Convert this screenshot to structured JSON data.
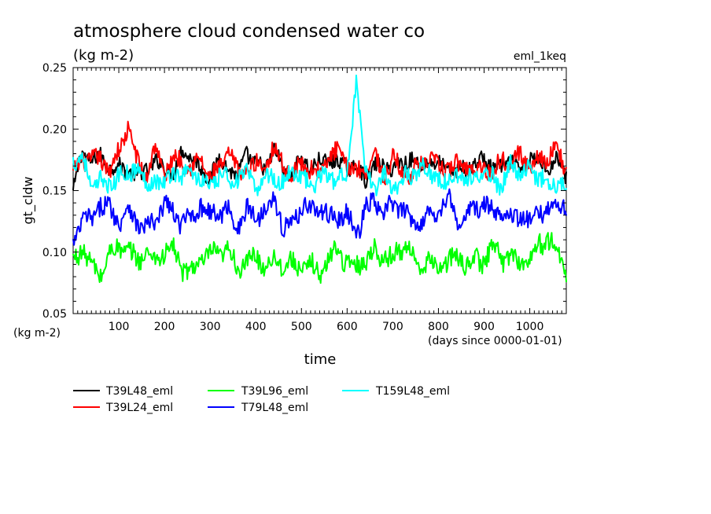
{
  "header": {
    "title": "atmosphere cloud condensed water co",
    "units": "(kg m-2)",
    "run_label": "eml_1keq"
  },
  "chart_data": {
    "type": "line",
    "title": "atmosphere cloud condensed water co",
    "subtitle": "(kg m-2)",
    "xlabel": "time",
    "xunits": "(days since 0000-01-01)",
    "ylabel": "gt_cldw",
    "yunits": "(kg m-2)",
    "xlim": [
      0,
      1080
    ],
    "ylim": [
      0.05,
      0.25
    ],
    "x_ticks": [
      100,
      200,
      300,
      400,
      500,
      600,
      700,
      800,
      900,
      1000
    ],
    "y_ticks": [
      "0.05",
      "0.10",
      "0.15",
      "0.20",
      "0.25"
    ],
    "grid": false,
    "legend_position": "bottom",
    "series": [
      {
        "name": "T39L48_eml",
        "color": "#000000",
        "mean": 0.17,
        "amplitude": 0.011,
        "x": [
          0,
          20,
          40,
          60,
          80,
          100,
          120,
          140,
          160,
          180,
          200,
          220,
          240,
          260,
          280,
          300,
          320,
          340,
          360,
          380,
          400,
          420,
          440,
          460,
          480,
          500,
          520,
          540,
          560,
          580,
          600,
          620,
          640,
          660,
          680,
          700,
          720,
          740,
          760,
          780,
          800,
          820,
          840,
          860,
          880,
          900,
          920,
          940,
          960,
          980,
          1000,
          1020,
          1040,
          1060,
          1080
        ],
        "values": [
          0.149,
          0.181,
          0.175,
          0.177,
          0.17,
          0.168,
          0.168,
          0.16,
          0.168,
          0.172,
          0.17,
          0.164,
          0.183,
          0.178,
          0.166,
          0.162,
          0.175,
          0.17,
          0.16,
          0.182,
          0.17,
          0.168,
          0.184,
          0.166,
          0.162,
          0.176,
          0.17,
          0.172,
          0.176,
          0.172,
          0.17,
          0.169,
          0.159,
          0.171,
          0.168,
          0.17,
          0.17,
          0.178,
          0.168,
          0.176,
          0.17,
          0.168,
          0.165,
          0.168,
          0.171,
          0.175,
          0.17,
          0.168,
          0.176,
          0.162,
          0.179,
          0.172,
          0.17,
          0.176,
          0.161
        ]
      },
      {
        "name": "T39L24_eml",
        "color": "#ff0000",
        "mean": 0.173,
        "amplitude": 0.012,
        "x": [
          0,
          20,
          40,
          60,
          80,
          100,
          120,
          140,
          160,
          180,
          200,
          220,
          240,
          260,
          280,
          300,
          320,
          340,
          360,
          380,
          400,
          420,
          440,
          460,
          480,
          500,
          520,
          540,
          560,
          580,
          600,
          620,
          640,
          660,
          680,
          700,
          720,
          740,
          760,
          780,
          800,
          820,
          840,
          860,
          880,
          900,
          920,
          940,
          960,
          980,
          1000,
          1020,
          1040,
          1060,
          1080
        ],
        "values": [
          0.162,
          0.176,
          0.174,
          0.176,
          0.166,
          0.182,
          0.202,
          0.174,
          0.162,
          0.185,
          0.164,
          0.176,
          0.174,
          0.168,
          0.176,
          0.16,
          0.167,
          0.182,
          0.165,
          0.168,
          0.17,
          0.172,
          0.184,
          0.172,
          0.162,
          0.172,
          0.167,
          0.164,
          0.177,
          0.181,
          0.172,
          0.165,
          0.168,
          0.179,
          0.161,
          0.176,
          0.165,
          0.164,
          0.17,
          0.176,
          0.168,
          0.169,
          0.17,
          0.172,
          0.165,
          0.17,
          0.164,
          0.176,
          0.176,
          0.178,
          0.17,
          0.176,
          0.178,
          0.184,
          0.165
        ]
      },
      {
        "name": "T39L96_eml",
        "color": "#00ff00",
        "mean": 0.094,
        "amplitude": 0.013,
        "x": [
          0,
          20,
          40,
          60,
          80,
          100,
          120,
          140,
          160,
          180,
          200,
          220,
          240,
          260,
          280,
          300,
          320,
          340,
          360,
          380,
          400,
          420,
          440,
          460,
          480,
          500,
          520,
          540,
          560,
          580,
          600,
          620,
          640,
          660,
          680,
          700,
          720,
          740,
          760,
          780,
          800,
          820,
          840,
          860,
          880,
          900,
          920,
          940,
          960,
          980,
          1000,
          1020,
          1040,
          1060,
          1080
        ],
        "values": [
          0.092,
          0.104,
          0.088,
          0.082,
          0.098,
          0.105,
          0.1,
          0.094,
          0.099,
          0.094,
          0.1,
          0.102,
          0.086,
          0.084,
          0.094,
          0.098,
          0.098,
          0.103,
          0.086,
          0.092,
          0.096,
          0.089,
          0.094,
          0.09,
          0.091,
          0.086,
          0.09,
          0.082,
          0.094,
          0.104,
          0.09,
          0.089,
          0.094,
          0.101,
          0.096,
          0.095,
          0.104,
          0.103,
          0.082,
          0.094,
          0.086,
          0.093,
          0.095,
          0.091,
          0.094,
          0.092,
          0.107,
          0.094,
          0.097,
          0.092,
          0.092,
          0.108,
          0.109,
          0.101,
          0.086
        ]
      },
      {
        "name": "T79L48_eml",
        "color": "#0000ff",
        "mean": 0.131,
        "amplitude": 0.013,
        "x": [
          0,
          20,
          40,
          60,
          80,
          100,
          120,
          140,
          160,
          180,
          200,
          220,
          240,
          260,
          280,
          300,
          320,
          340,
          360,
          380,
          400,
          420,
          440,
          460,
          480,
          500,
          520,
          540,
          560,
          580,
          600,
          620,
          640,
          660,
          680,
          700,
          720,
          740,
          760,
          780,
          800,
          820,
          840,
          860,
          880,
          900,
          920,
          940,
          960,
          980,
          1000,
          1020,
          1040,
          1060,
          1080
        ],
        "values": [
          0.106,
          0.128,
          0.124,
          0.14,
          0.135,
          0.125,
          0.136,
          0.124,
          0.12,
          0.123,
          0.141,
          0.13,
          0.124,
          0.129,
          0.139,
          0.13,
          0.132,
          0.134,
          0.12,
          0.134,
          0.128,
          0.136,
          0.144,
          0.12,
          0.122,
          0.139,
          0.135,
          0.135,
          0.128,
          0.129,
          0.13,
          0.114,
          0.135,
          0.14,
          0.132,
          0.138,
          0.136,
          0.125,
          0.126,
          0.13,
          0.133,
          0.146,
          0.124,
          0.129,
          0.135,
          0.14,
          0.13,
          0.135,
          0.129,
          0.13,
          0.122,
          0.134,
          0.134,
          0.141,
          0.136
        ]
      },
      {
        "name": "T159L48_eml",
        "color": "#00ffff",
        "mean": 0.159,
        "amplitude": 0.012,
        "x": [
          0,
          20,
          40,
          60,
          80,
          100,
          120,
          140,
          160,
          180,
          200,
          220,
          240,
          260,
          280,
          300,
          320,
          340,
          360,
          380,
          400,
          420,
          440,
          460,
          480,
          500,
          520,
          540,
          560,
          580,
          600,
          620,
          640,
          660,
          680,
          700,
          720,
          740,
          760,
          780,
          800,
          820,
          840,
          860,
          880,
          900,
          920,
          940,
          960,
          980,
          1000,
          1020,
          1040,
          1060,
          1080
        ],
        "values": [
          0.175,
          0.178,
          0.151,
          0.16,
          0.151,
          0.165,
          0.161,
          0.172,
          0.152,
          0.162,
          0.153,
          0.168,
          0.16,
          0.167,
          0.158,
          0.152,
          0.163,
          0.158,
          0.161,
          0.163,
          0.153,
          0.16,
          0.162,
          0.155,
          0.168,
          0.162,
          0.15,
          0.165,
          0.158,
          0.161,
          0.162,
          0.242,
          0.161,
          0.154,
          0.163,
          0.152,
          0.16,
          0.161,
          0.172,
          0.163,
          0.162,
          0.152,
          0.167,
          0.155,
          0.165,
          0.158,
          0.163,
          0.152,
          0.174,
          0.163,
          0.166,
          0.163,
          0.155,
          0.157,
          0.154
        ]
      }
    ]
  }
}
